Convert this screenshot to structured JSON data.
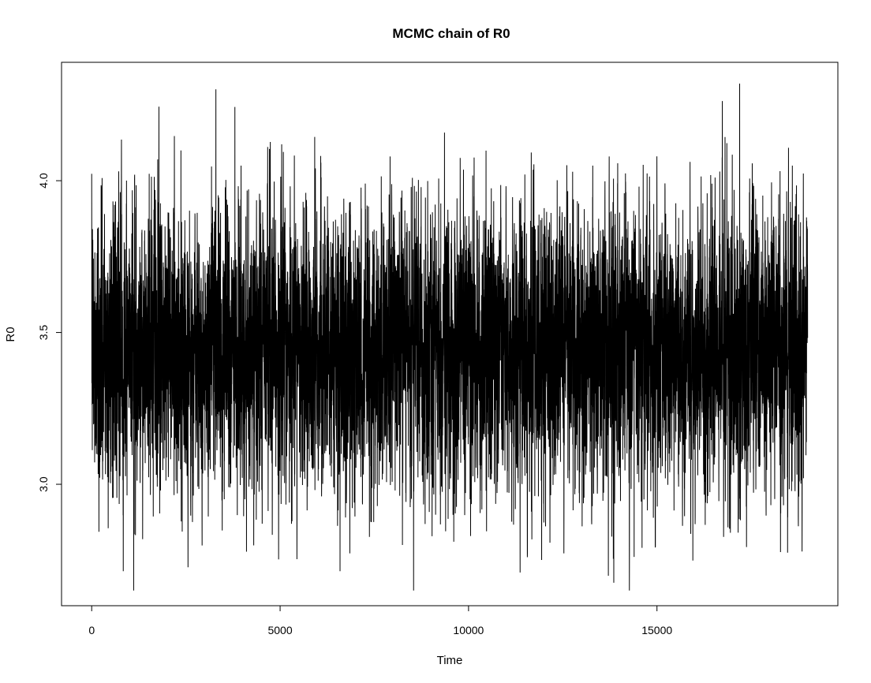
{
  "chart_data": {
    "type": "line",
    "title": "MCMC chain of R0",
    "xlabel": "Time",
    "ylabel": "R0",
    "xlim": [
      -800,
      19800
    ],
    "ylim": [
      2.6,
      4.39
    ],
    "xticks": [
      0,
      5000,
      10000,
      15000
    ],
    "xtick_labels": [
      "0",
      "5000",
      "10000",
      "15000"
    ],
    "yticks": [
      3.0,
      3.5,
      4.0
    ],
    "ytick_labels": [
      "3.0",
      "3.5",
      "4.0"
    ],
    "grid": false,
    "legend": "none",
    "series": [
      {
        "name": "R0",
        "n_samples": 19000,
        "x_start": 0,
        "x_end": 19000,
        "mean": 3.44,
        "sd": 0.21,
        "min": 2.65,
        "max": 4.32,
        "color": "#000000"
      }
    ]
  }
}
